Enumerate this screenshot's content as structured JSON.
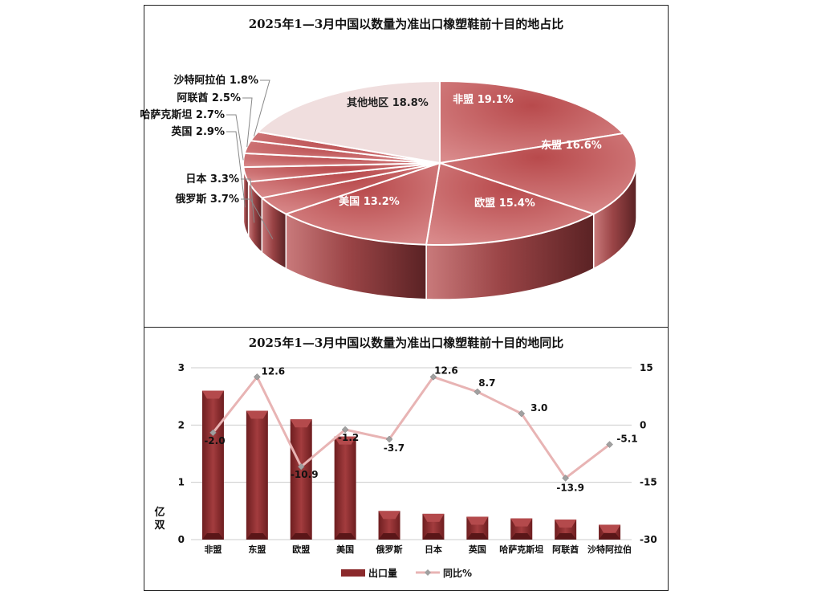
{
  "chart_data": [
    {
      "type": "pie",
      "title": "2025年1—3月中国以数量为准出口橡塑鞋前十目的地占比",
      "categories": [
        "非盟",
        "东盟",
        "欧盟",
        "美国",
        "俄罗斯",
        "日本",
        "英国",
        "哈萨克斯坦",
        "阿联酋",
        "沙特阿拉伯",
        "其他地区"
      ],
      "values": [
        19.1,
        16.6,
        15.4,
        13.2,
        3.7,
        3.3,
        2.9,
        2.7,
        2.5,
        1.8,
        18.8
      ],
      "labels": [
        "非盟 19.1%",
        "东盟 16.6%",
        "欧盟 15.4%",
        "美国 13.2%",
        "俄罗斯 3.7%",
        "日本 3.3%",
        "英国 2.9%",
        "哈萨克斯坦 2.7%",
        "阿联酋 2.5%",
        "沙特阿拉伯 1.8%",
        "其他地区 18.8%"
      ],
      "colors": {
        "slice": "#c0585a",
        "slice_light": "#d98a8b",
        "other": "#f0dede",
        "side": "#8f3b3d"
      }
    },
    {
      "type": "bar",
      "title": "2025年1—3月中国以数量为准出口橡塑鞋前十目的地同比",
      "categories": [
        "非盟",
        "东盟",
        "欧盟",
        "美国",
        "俄罗斯",
        "日本",
        "英国",
        "哈萨克斯坦",
        "阿联酋",
        "沙特阿拉伯"
      ],
      "series": [
        {
          "name": "出口量",
          "axis": "left",
          "kind": "bar",
          "values": [
            2.6,
            2.25,
            2.1,
            1.8,
            0.5,
            0.45,
            0.4,
            0.37,
            0.35,
            0.26
          ]
        },
        {
          "name": "同比%",
          "axis": "right",
          "kind": "line",
          "values": [
            -2.0,
            12.6,
            -10.9,
            -1.2,
            -3.7,
            12.6,
            8.7,
            3.0,
            -13.9,
            -5.1
          ],
          "labels": [
            "-2.0",
            "12.6",
            "-10.9",
            "-1.2",
            "-3.7",
            "12.6",
            "8.7",
            "3.0",
            "-13.9",
            "-5.1"
          ]
        }
      ],
      "ylabel": "亿双",
      "ylim": [
        0,
        3
      ],
      "yticks": [
        "0",
        "1",
        "2",
        "3"
      ],
      "y2lim": [
        -30,
        15
      ],
      "y2ticks": [
        "-30",
        "-15",
        "0",
        "15"
      ],
      "grid": true,
      "legend_position": "bottom",
      "colors": {
        "bar": "#8b2a2c",
        "bar_top": "#b44a4c",
        "line": "#e8b4b4",
        "marker": "#a0a0a0"
      }
    }
  ]
}
